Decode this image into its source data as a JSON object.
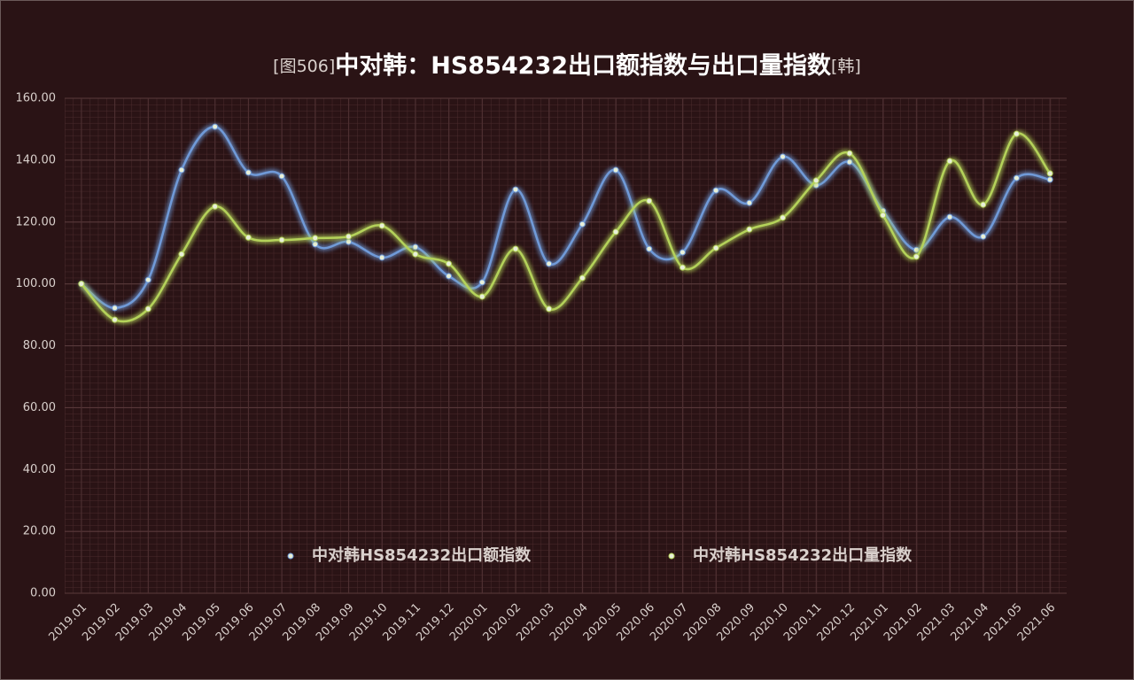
{
  "chart_data": {
    "type": "line",
    "title_prefix": "[图506]",
    "title": "中对韩：HS854232出口额指数与出口量指数",
    "title_suffix": "[韩]",
    "categories": [
      "2019.01",
      "2019.02",
      "2019.03",
      "2019.04",
      "2019.05",
      "2019.06",
      "2019.07",
      "2019.08",
      "2019.09",
      "2019.10",
      "2019.11",
      "2019.12",
      "2020.01",
      "2020.02",
      "2020.03",
      "2020.04",
      "2020.05",
      "2020.06",
      "2020.07",
      "2020.08",
      "2020.09",
      "2020.10",
      "2020.11",
      "2020.12",
      "2021.01",
      "2021.02",
      "2021.03",
      "2021.04",
      "2021.05",
      "2021.06"
    ],
    "series": [
      {
        "name": "中对韩HS854232出口额指数",
        "color": "#6f9ad8",
        "values": [
          100,
          92.2,
          101.3,
          136.8,
          150.8,
          136,
          134.8,
          112.8,
          113.6,
          108.5,
          111.9,
          102.5,
          100.5,
          130.5,
          106.5,
          119.3,
          136.8,
          111.3,
          110.2,
          130.2,
          126.2,
          141.1,
          131.9,
          139.4,
          123.6,
          111,
          121.6,
          115.3,
          134.2,
          133.7
        ]
      },
      {
        "name": "中对韩HS854232出口量指数",
        "color": "#b4d25a",
        "values": [
          100,
          88.4,
          91.9,
          109.6,
          125,
          115,
          114.2,
          114.8,
          115.3,
          118.8,
          109.6,
          106.5,
          95.9,
          111.3,
          91.9,
          101.9,
          116.8,
          126.8,
          105.3,
          111.6,
          117.6,
          121.4,
          133.4,
          142.2,
          122.2,
          108.8,
          139.7,
          125.6,
          148.5,
          135.7
        ]
      }
    ],
    "ylim": [
      0,
      160
    ],
    "yticks": [
      {
        "value": 0,
        "label": "0.00"
      },
      {
        "value": 20,
        "label": "20.00"
      },
      {
        "value": 40,
        "label": "40.00"
      },
      {
        "value": 60,
        "label": "60.00"
      },
      {
        "value": 80,
        "label": "80.00"
      },
      {
        "value": 100,
        "label": "100.00"
      },
      {
        "value": 120,
        "label": "120.00"
      },
      {
        "value": 140,
        "label": "140.00"
      },
      {
        "value": 160,
        "label": "160.00"
      }
    ],
    "grid": true,
    "smooth": true
  }
}
